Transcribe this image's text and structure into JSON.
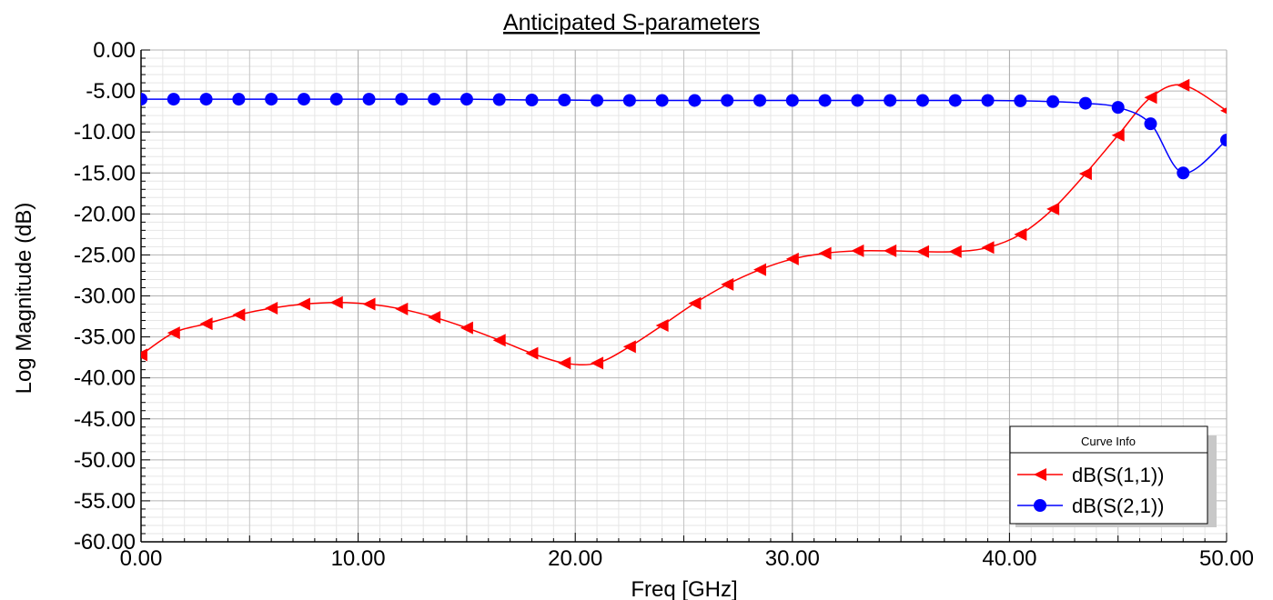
{
  "chart_data": {
    "type": "line",
    "title": "Anticipated S-parameters",
    "xlabel": "Freq [GHz]",
    "ylabel": "Log Magnitude (dB)",
    "xlim": [
      0,
      50
    ],
    "ylim": [
      -60,
      0
    ],
    "x_ticks": [
      "0.00",
      "10.00",
      "20.00",
      "30.00",
      "40.00",
      "50.00"
    ],
    "y_ticks": [
      "0.00",
      "-5.00",
      "-10.00",
      "-15.00",
      "-20.00",
      "-25.00",
      "-30.00",
      "-35.00",
      "-40.00",
      "-45.00",
      "-50.00",
      "-55.00",
      "-60.00"
    ],
    "grid": true,
    "legend_title": "Curve Info",
    "legend_position": "bottom-right",
    "x": [
      0,
      1.5,
      3,
      4.5,
      6,
      7.5,
      9,
      10.5,
      12,
      13.5,
      15,
      16.5,
      18,
      19.5,
      21,
      22.5,
      24,
      25.5,
      27,
      28.5,
      30,
      31.5,
      33,
      34.5,
      36,
      37.5,
      39,
      40.5,
      42,
      43.5,
      45,
      46.5,
      48,
      50
    ],
    "series": [
      {
        "name": "dB(S(1,1))",
        "color": "#ff0000",
        "marker": "triangle-left",
        "values": [
          -37.2,
          -34.5,
          -33.4,
          -32.3,
          -31.5,
          -31.0,
          -30.8,
          -31.0,
          -31.6,
          -32.6,
          -33.9,
          -35.4,
          -37.0,
          -38.2,
          -38.2,
          -36.2,
          -33.6,
          -30.9,
          -28.6,
          -26.8,
          -25.5,
          -24.8,
          -24.5,
          -24.5,
          -24.6,
          -24.6,
          -24.1,
          -22.5,
          -19.4,
          -15.1,
          -10.4,
          -5.8,
          -4.3,
          -7.4
        ]
      },
      {
        "name": "dB(S(2,1))",
        "color": "#0000ff",
        "marker": "circle",
        "values": [
          -6.0,
          -6.0,
          -6.0,
          -6.0,
          -6.0,
          -6.0,
          -6.0,
          -6.0,
          -6.0,
          -6.0,
          -6.0,
          -6.05,
          -6.1,
          -6.1,
          -6.15,
          -6.15,
          -6.15,
          -6.15,
          -6.15,
          -6.15,
          -6.15,
          -6.15,
          -6.15,
          -6.15,
          -6.15,
          -6.15,
          -6.15,
          -6.2,
          -6.3,
          -6.5,
          -7.0,
          -9.0,
          -15.0,
          -11.0
        ]
      }
    ]
  }
}
